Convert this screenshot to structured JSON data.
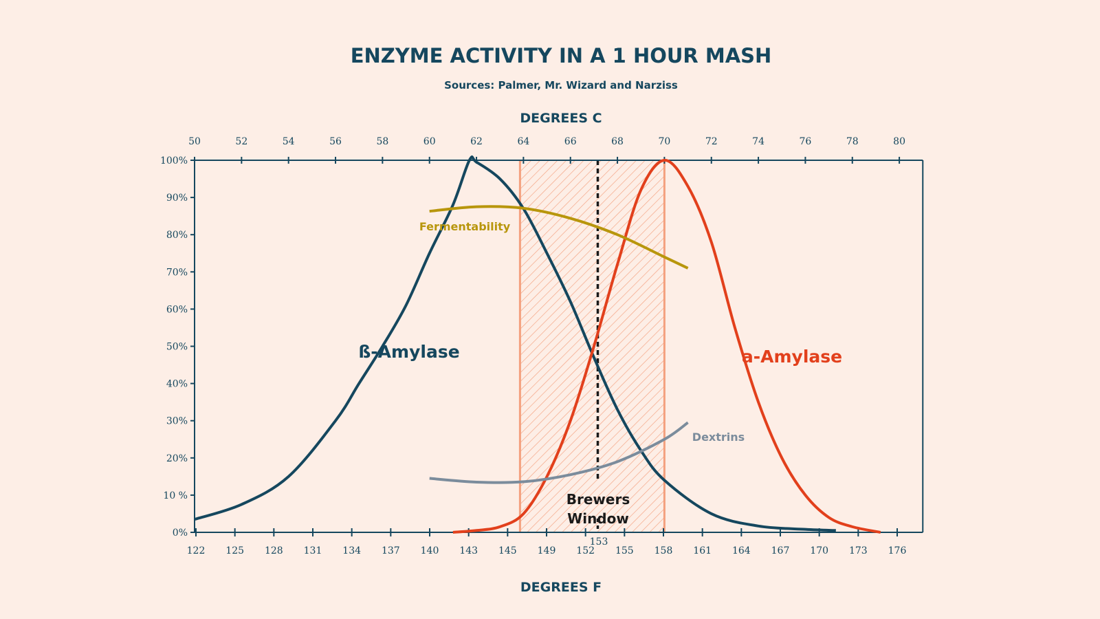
{
  "chart_data": {
    "type": "line",
    "title": "ENZYME ACTIVITY IN A 1 HOUR MASH",
    "subtitle": "Sources: Palmer, Mr. Wizard and Narziss",
    "x_top_label": "DEGREES C",
    "x_bottom_label": "DEGREES F",
    "xlim_c": [
      50,
      81
    ],
    "ylim": [
      0,
      100
    ],
    "x_top_ticks": [
      "50",
      "52",
      "54",
      "56",
      "58",
      "60",
      "62",
      "64",
      "66",
      "68",
      "70",
      "72",
      "74",
      "76",
      "78",
      "80"
    ],
    "x_bottom_ticks": [
      "122",
      "125",
      "128",
      "131",
      "134",
      "137",
      "140",
      "143",
      "145",
      "149",
      "152",
      "155",
      "158",
      "161",
      "164",
      "167",
      "170",
      "173",
      "176"
    ],
    "y_ticks": [
      "0%",
      "10 %",
      "20%",
      "30%",
      "40%",
      "50%",
      "60%",
      "70%",
      "80%",
      "90%",
      "100%"
    ],
    "grid": false,
    "series": [
      {
        "name": "ß-Amylase",
        "color": "#15475e",
        "x": [
          50,
          52,
          54,
          56,
          57,
          58,
          59,
          60,
          61,
          61.7,
          62,
          63,
          64,
          65,
          66,
          67,
          68,
          69,
          70,
          72,
          74,
          76,
          77.3
        ],
        "y": [
          3.5,
          7.5,
          15,
          30,
          40,
          50,
          61,
          75,
          88,
          100,
          99.5,
          95,
          87,
          75,
          62,
          47,
          33,
          22,
          14,
          5,
          1.7,
          0.8,
          0.5
        ]
      },
      {
        "name": "a-Amylase",
        "color": "#e2401c",
        "x": [
          61,
          62,
          63,
          64,
          65,
          66,
          67,
          68,
          69,
          70,
          71,
          72,
          73,
          74,
          75,
          76,
          77,
          78,
          79.2
        ],
        "y": [
          0,
          0.5,
          1.5,
          5,
          15,
          30,
          50,
          72,
          92,
          100,
          93,
          78,
          55,
          35,
          20,
          10,
          4,
          1.5,
          0
        ]
      },
      {
        "name": "Fermentability",
        "color": "#b8960c",
        "x": [
          60,
          62,
          64,
          66,
          68,
          70,
          71
        ],
        "y": [
          86.3,
          87.5,
          87.1,
          84.4,
          80,
          74,
          71
        ]
      },
      {
        "name": "Dextrins",
        "color": "#7b8c9c",
        "x": [
          60,
          62,
          64,
          66,
          68,
          70,
          71
        ],
        "y": [
          14.5,
          13.5,
          13.6,
          15.5,
          19,
          25,
          29.5
        ]
      }
    ],
    "annotations": {
      "brewers_window": {
        "label_line1": "Brewers",
        "label_line2": "Window",
        "from_c": 64,
        "to_c": 70
      },
      "marker": {
        "label": "153",
        "at_f": 153
      }
    },
    "colors": {
      "background": "#fdeee6",
      "axis": "#15475e",
      "window_fill": "#f4a07e"
    }
  }
}
